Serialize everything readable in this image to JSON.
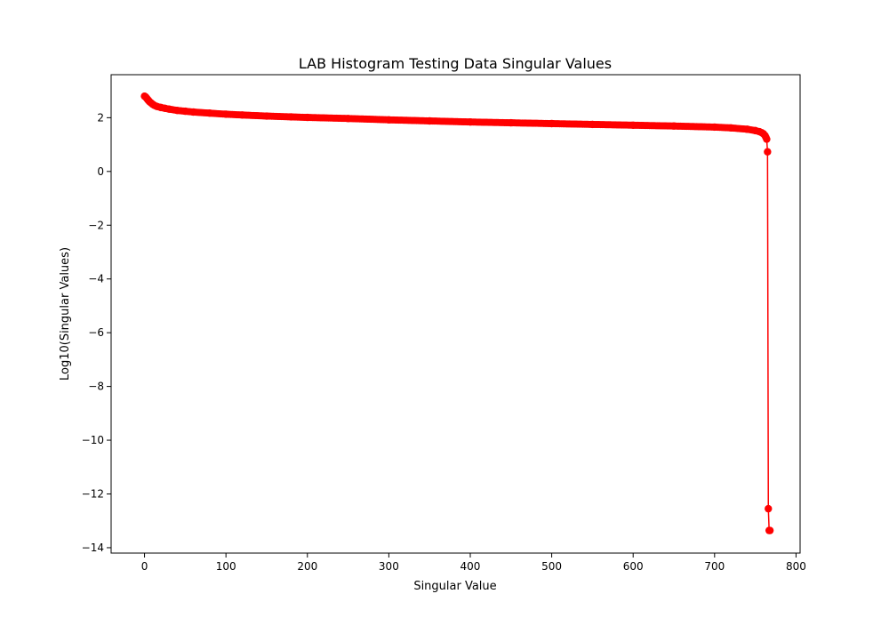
{
  "chart_data": {
    "type": "line",
    "title": "LAB Histogram Testing Data Singular Values",
    "xlabel": "Singular Value",
    "ylabel": "Log10(Singular Values)",
    "xlim": [
      -41,
      805
    ],
    "ylim": [
      -14.2,
      3.6
    ],
    "x_ticks": [
      0,
      100,
      200,
      300,
      400,
      500,
      600,
      700,
      800
    ],
    "y_ticks": [
      2,
      0,
      -2,
      -4,
      -6,
      -8,
      -10,
      -12,
      -14
    ],
    "x_tick_labels": [
      "0",
      "100",
      "200",
      "300",
      "400",
      "500",
      "600",
      "700",
      "800"
    ],
    "y_tick_labels": [
      "2",
      "0",
      "−2",
      "−4",
      "−6",
      "−8",
      "−10",
      "−12",
      "−14"
    ],
    "grid": false,
    "legend": "none",
    "series": [
      {
        "color": "#ff0000",
        "marker": "circle",
        "x": [
          0,
          1,
          2,
          3,
          4,
          5,
          6,
          8,
          10,
          12,
          15,
          20,
          25,
          30,
          40,
          50,
          60,
          80,
          100,
          120,
          150,
          180,
          200,
          250,
          300,
          350,
          400,
          450,
          500,
          550,
          600,
          650,
          700,
          720,
          740,
          750,
          755,
          758,
          760,
          762,
          763,
          764,
          765,
          766,
          767,
          768
        ],
        "y": [
          2.8,
          2.78,
          2.75,
          2.71,
          2.67,
          2.64,
          2.6,
          2.55,
          2.5,
          2.46,
          2.42,
          2.38,
          2.35,
          2.32,
          2.27,
          2.24,
          2.21,
          2.17,
          2.13,
          2.1,
          2.06,
          2.03,
          2.01,
          1.97,
          1.92,
          1.88,
          1.84,
          1.81,
          1.78,
          1.75,
          1.72,
          1.69,
          1.65,
          1.62,
          1.57,
          1.52,
          1.48,
          1.44,
          1.4,
          1.33,
          1.27,
          1.2,
          0.73,
          -12.55,
          -13.36,
          -13.36
        ]
      }
    ]
  }
}
